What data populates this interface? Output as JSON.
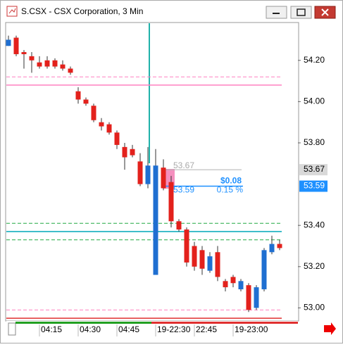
{
  "chart_data": {
    "type": "candlestick",
    "title": "S.CSX - CSX Corporation, 3 Min",
    "categories": [
      null,
      null,
      null,
      null,
      "04:15",
      null,
      null,
      null,
      null,
      "04:30",
      null,
      null,
      null,
      null,
      "04:45",
      null,
      null,
      null,
      null,
      "19-22:30",
      null,
      null,
      null,
      null,
      "22:45",
      null,
      null,
      null,
      null,
      "19-23:00",
      null,
      null,
      null,
      null,
      null,
      null
    ],
    "open": [
      54.27,
      54.31,
      54.24,
      54.22,
      54.19,
      54.2,
      54.2,
      54.18,
      54.16,
      54.05,
      54.01,
      53.98,
      53.9,
      53.89,
      53.85,
      53.78,
      53.77,
      53.71,
      53.6,
      53.16,
      53.68,
      53.61,
      53.42,
      53.38,
      53.3,
      53.28,
      53.18,
      53.27,
      53.13,
      53.15,
      53.09,
      53.11,
      53.0,
      53.09,
      53.27,
      53.31
    ],
    "high": [
      54.32,
      54.32,
      54.25,
      54.24,
      54.22,
      54.22,
      54.21,
      54.2,
      54.17,
      54.07,
      54.02,
      53.99,
      53.92,
      53.9,
      53.86,
      53.8,
      53.79,
      53.75,
      53.78,
      53.77,
      53.72,
      53.64,
      53.43,
      53.39,
      53.32,
      53.3,
      53.27,
      53.3,
      53.14,
      53.16,
      53.14,
      53.12,
      53.11,
      53.29,
      53.35,
      53.33
    ],
    "low": [
      54.27,
      54.22,
      54.16,
      54.14,
      54.16,
      54.16,
      54.16,
      54.15,
      54.13,
      53.99,
      53.98,
      53.9,
      53.86,
      53.84,
      53.77,
      53.67,
      53.73,
      53.59,
      53.58,
      53.16,
      53.57,
      53.39,
      53.37,
      53.2,
      53.18,
      53.16,
      53.17,
      53.13,
      53.08,
      53.1,
      53.08,
      52.98,
      52.99,
      53.08,
      53.26,
      53.28
    ],
    "close": [
      54.3,
      54.23,
      54.23,
      54.2,
      54.17,
      54.17,
      54.17,
      54.16,
      54.14,
      54.01,
      53.99,
      53.91,
      53.88,
      53.85,
      53.79,
      53.73,
      53.74,
      53.6,
      53.69,
      53.69,
      53.58,
      53.42,
      53.38,
      53.22,
      53.2,
      53.19,
      53.25,
      53.15,
      53.1,
      53.12,
      53.13,
      52.99,
      53.1,
      53.28,
      53.31,
      53.29
    ],
    "up_color": "#1f6fd1",
    "down_color": "#e3211c",
    "ylim": [
      52.94,
      54.38
    ],
    "yticks": [
      {
        "value": 54.2,
        "label": "54.20"
      },
      {
        "value": 54.0,
        "label": "54.00"
      },
      {
        "value": 53.8,
        "label": "53.80"
      },
      {
        "value": 53.4,
        "label": "53.40"
      },
      {
        "value": 53.2,
        "label": "53.20"
      },
      {
        "value": 53.0,
        "label": "53.00"
      }
    ],
    "price_tags": [
      {
        "value": 53.67,
        "label": "53.67",
        "color": "#d9d9d9",
        "text_color": "#000000"
      },
      {
        "value": 53.59,
        "label": "53.59",
        "color": "#1e90ff",
        "text_color": "#ffffff"
      }
    ],
    "levels": [
      {
        "value": 54.12,
        "color": "#ff80c0",
        "dash": true
      },
      {
        "value": 54.08,
        "color": "#ff80c0",
        "dash": false
      },
      {
        "value": 53.41,
        "color": "#22aa44",
        "dash": true
      },
      {
        "value": 53.37,
        "color": "#00a8b8",
        "dash": false
      },
      {
        "value": 53.33,
        "color": "#22aa44",
        "dash": true
      },
      {
        "value": 52.99,
        "color": "#ff80c0",
        "dash": true
      },
      {
        "value": 52.95,
        "color": "#e03030",
        "dash": false
      }
    ],
    "measure": {
      "start_label": "53.67",
      "end_label": "53.59",
      "change": "$0.08",
      "percent": "0.15 %"
    }
  }
}
